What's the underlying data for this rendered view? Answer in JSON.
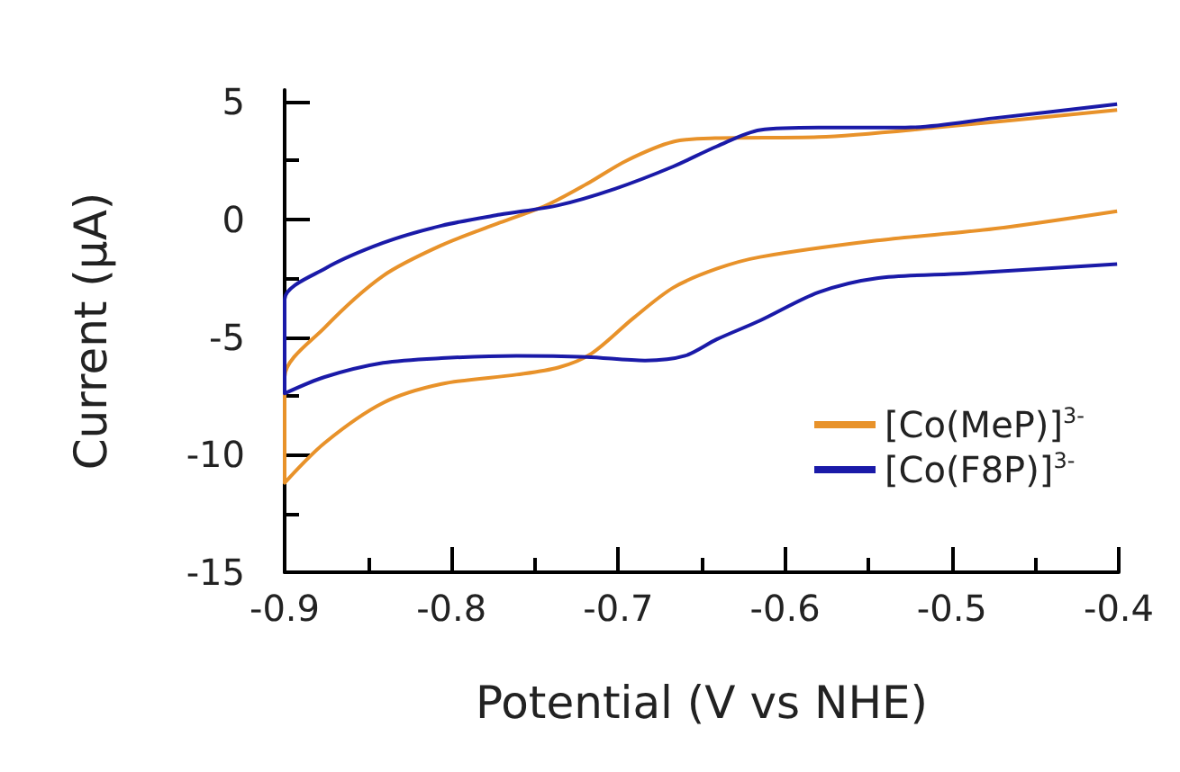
{
  "chart_data": {
    "type": "line",
    "xlabel": "Potential (V vs NHE)",
    "ylabel": "Current (μA)",
    "xlim": [
      -0.9,
      -0.4
    ],
    "xticks": [
      -0.9,
      -0.8,
      -0.7,
      -0.6,
      -0.5,
      -0.4
    ],
    "ylim": [
      -15,
      5.5
    ],
    "yticks": [
      -15,
      -10,
      -5,
      0,
      5
    ],
    "grid": false,
    "legend": "bottom right",
    "marker": "none",
    "line_style": "solid",
    "series": [
      {
        "name": "[Co(MeP)]$^{3-}$",
        "color": "#e8922a",
        "x": [
          -0.401,
          -0.475,
          -0.545,
          -0.615,
          -0.641,
          -0.667,
          -0.691,
          -0.716,
          -0.736,
          -0.761,
          -0.806,
          -0.841,
          -0.876,
          -0.9,
          -0.9,
          -0.876,
          -0.841,
          -0.806,
          -0.771,
          -0.743,
          -0.719,
          -0.695,
          -0.667,
          -0.642,
          -0.58,
          -0.51,
          -0.401
        ],
        "values": [
          0.35,
          -0.4,
          -0.9,
          -1.6,
          -2.1,
          -2.9,
          -4.2,
          -5.7,
          -6.3,
          -6.6,
          -7.0,
          -7.8,
          -9.5,
          -11.2,
          -6.7,
          -4.6,
          -2.4,
          -1.1,
          -0.14,
          0.6,
          1.5,
          2.5,
          3.3,
          3.45,
          3.5,
          3.9,
          4.65
        ]
      },
      {
        "name": "[Co(F8P)]$^{3-}$",
        "color": "#1a1aa8",
        "x": [
          -0.401,
          -0.493,
          -0.545,
          -0.58,
          -0.615,
          -0.641,
          -0.66,
          -0.684,
          -0.719,
          -0.761,
          -0.806,
          -0.841,
          -0.876,
          -0.9,
          -0.9,
          -0.876,
          -0.841,
          -0.806,
          -0.771,
          -0.736,
          -0.702,
          -0.667,
          -0.641,
          -0.615,
          -0.58,
          -0.528,
          -0.475,
          -0.401
        ],
        "values": [
          -1.9,
          -2.3,
          -2.5,
          -3.1,
          -4.3,
          -5.1,
          -5.8,
          -6.0,
          -5.85,
          -5.8,
          -5.9,
          -6.1,
          -6.7,
          -7.4,
          -3.4,
          -2.1,
          -1.0,
          -0.27,
          0.2,
          0.6,
          1.3,
          2.25,
          3.1,
          3.8,
          3.9,
          3.9,
          4.3,
          4.9
        ]
      }
    ]
  }
}
